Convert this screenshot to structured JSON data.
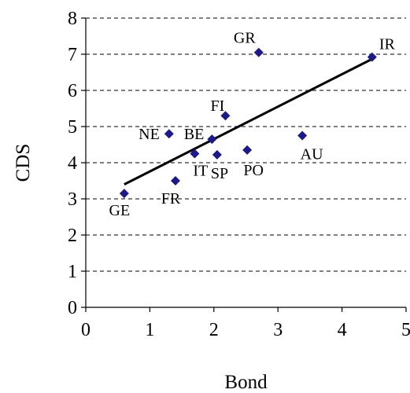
{
  "chart_data": {
    "type": "scatter",
    "xlabel": "Bond",
    "ylabel": "CDS",
    "xlim": [
      0,
      5
    ],
    "ylim": [
      0,
      8
    ],
    "x_ticks": [
      0,
      1,
      2,
      3,
      4,
      5
    ],
    "y_ticks": [
      0,
      1,
      2,
      3,
      4,
      5,
      6,
      7,
      8
    ],
    "grid": "horizontal dashed",
    "legend": "none",
    "marker": "diamond",
    "marker_color": "#1a1a8c",
    "trendline": {
      "type": "linear",
      "x": [
        0.6,
        4.45
      ],
      "y": [
        3.4,
        6.85
      ],
      "color": "#000000"
    },
    "points": [
      {
        "label": "GE",
        "x": 0.6,
        "y": 3.15
      },
      {
        "label": "FR",
        "x": 1.4,
        "y": 3.5
      },
      {
        "label": "NE",
        "x": 1.3,
        "y": 4.8
      },
      {
        "label": "IT",
        "x": 1.7,
        "y": 4.25
      },
      {
        "label": "BE",
        "x": 1.97,
        "y": 4.65
      },
      {
        "label": "SP",
        "x": 2.05,
        "y": 4.22
      },
      {
        "label": "FI",
        "x": 2.18,
        "y": 5.3
      },
      {
        "label": "PO",
        "x": 2.52,
        "y": 4.35
      },
      {
        "label": "GR",
        "x": 2.7,
        "y": 7.05
      },
      {
        "label": "AU",
        "x": 3.38,
        "y": 4.75
      },
      {
        "label": "IR",
        "x": 4.47,
        "y": 6.92
      }
    ]
  }
}
